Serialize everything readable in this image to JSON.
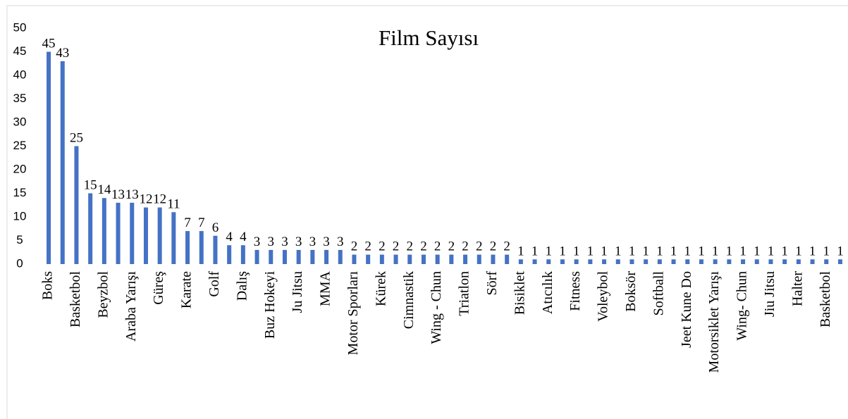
{
  "chart_data": {
    "type": "bar",
    "title": "Film Sayısı",
    "categories": [
      "Boks",
      null,
      "Basketbol",
      null,
      "Beyzbol",
      null,
      "Araba Yarışı",
      null,
      "Güreş",
      null,
      "Karate",
      null,
      "Golf",
      null,
      "Dalış",
      null,
      "Buz Hokeyi",
      null,
      "Ju Jitsu",
      null,
      "MMA",
      null,
      "Motor Sporları",
      null,
      "Kürek",
      null,
      "Cimnastik",
      null,
      "Wing - Chun",
      null,
      "Triatlon",
      null,
      "Sörf",
      null,
      "Bisiklet",
      null,
      "Atıcılık",
      null,
      "Fitness",
      null,
      "Voleybol",
      null,
      "Boksör",
      null,
      "Softball",
      null,
      "Jeet Kune Do",
      null,
      "Motorsiklet Yarışı",
      null,
      "Wing- Chun",
      null,
      "Jiu Jitsu",
      null,
      "Halter",
      null,
      "Basketbol",
      null
    ],
    "values": [
      45,
      43,
      25,
      15,
      14,
      13,
      13,
      12,
      12,
      11,
      7,
      7,
      6,
      4,
      4,
      3,
      3,
      3,
      3,
      3,
      3,
      3,
      2,
      2,
      2,
      2,
      2,
      2,
      2,
      2,
      2,
      2,
      2,
      2,
      1,
      1,
      1,
      1,
      1,
      1,
      1,
      1,
      1,
      1,
      1,
      1,
      1,
      1,
      1,
      1,
      1,
      1,
      1,
      1,
      1,
      1,
      1,
      1
    ],
    "color": "#4472c4",
    "ylim": [
      0,
      50
    ],
    "yticks": [
      0,
      5,
      10,
      15,
      20,
      25,
      30,
      35,
      40,
      45,
      50
    ],
    "grid": false
  }
}
